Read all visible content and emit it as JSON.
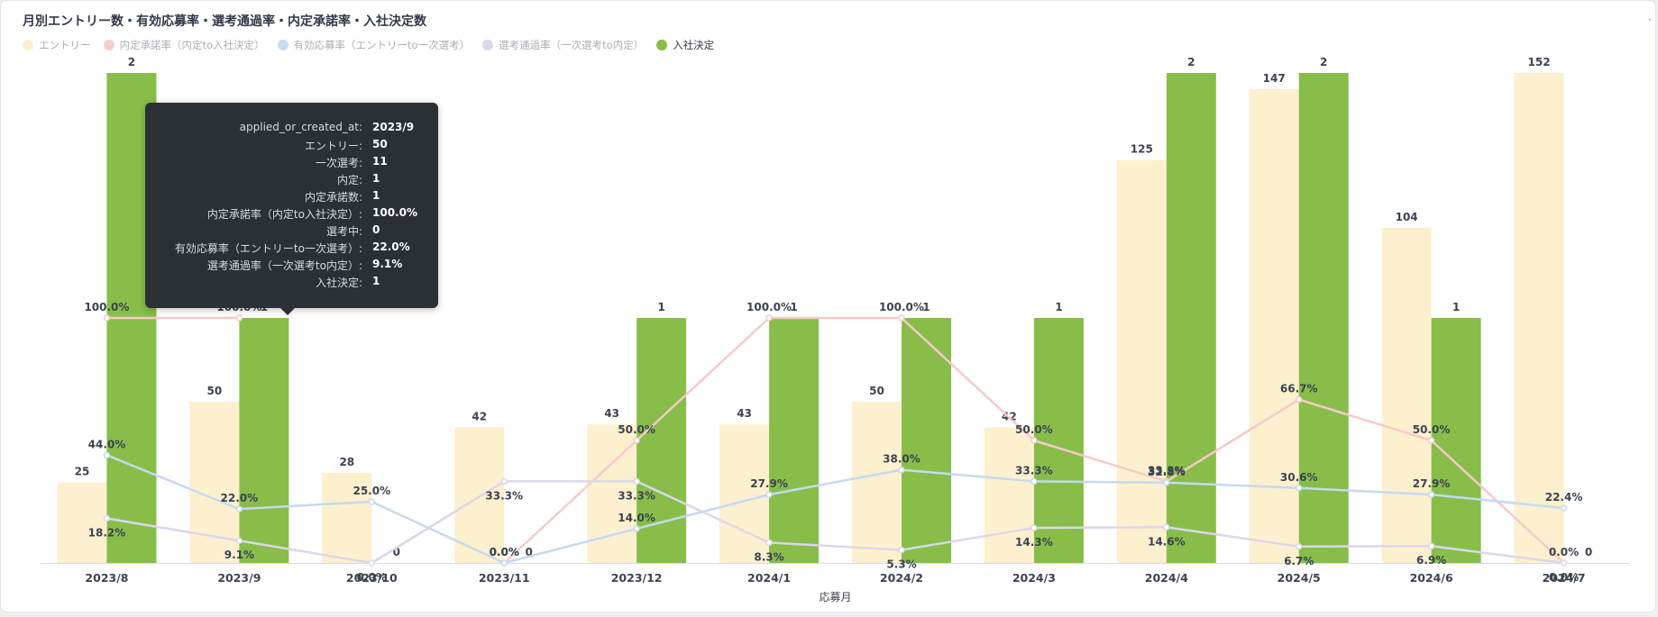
{
  "title": "月別エントリー数・有効応募率・選考通過率・内定承諾率・入社決定数",
  "corner_mark": "·",
  "legend": [
    {
      "label": "エントリー",
      "color": "#fdf0cf",
      "active": false
    },
    {
      "label": "内定承諾率（内定to入社決定）",
      "color": "#f9cfcf",
      "active": false
    },
    {
      "label": "有効応募率（エントリーto一次選考）",
      "color": "#c7dcf1",
      "active": false
    },
    {
      "label": "選考通過率（一次選考to内定）",
      "color": "#dcd7ea",
      "active": false
    },
    {
      "label": "入社決定",
      "color": "#88bd4a",
      "active": true
    }
  ],
  "tooltip": {
    "rows": [
      {
        "key": "applied_or_created_at:",
        "value": "2023/9"
      },
      {
        "key": "エントリー:",
        "value": "50"
      },
      {
        "key": "一次選考:",
        "value": "11"
      },
      {
        "key": "内定:",
        "value": "1"
      },
      {
        "key": "内定承諾数:",
        "value": "1"
      },
      {
        "key": "内定承諾率（内定to入社決定）:",
        "value": "100.0%"
      },
      {
        "key": "選考中:",
        "value": "0"
      },
      {
        "key": "有効応募率（エントリーto一次選考）:",
        "value": "22.0%"
      },
      {
        "key": "選考通過率（一次選考to内定）:",
        "value": "9.1%"
      },
      {
        "key": "入社決定:",
        "value": "1"
      }
    ]
  },
  "chart_data": {
    "type": "bar",
    "xlabel": "応募月",
    "categories": [
      "2023/8",
      "2023/9",
      "2023/10",
      "2023/11",
      "2023/12",
      "2024/1",
      "2024/2",
      "2024/3",
      "2024/4",
      "2024/5",
      "2024/6",
      "2024/7"
    ],
    "entry": {
      "name": "エントリー",
      "color": "#fdf0cf",
      "values": [
        25,
        50,
        28,
        42,
        43,
        43,
        50,
        42,
        125,
        147,
        104,
        152
      ],
      "ylim": [
        0,
        152
      ]
    },
    "hires": {
      "name": "入社決定",
      "color": "#88bd4a",
      "values": [
        2,
        1,
        0,
        0,
        1,
        1,
        1,
        1,
        2,
        2,
        1,
        0
      ],
      "ylim": [
        0,
        2
      ]
    },
    "lines": [
      {
        "name": "内定承諾率（内定to入社決定）",
        "color": "#f7c9c9",
        "values": [
          100.0,
          100.0,
          null,
          0.0,
          50.0,
          100.0,
          100.0,
          50.0,
          33.3,
          66.7,
          50.0,
          0.0
        ],
        "labels": [
          "100.0%",
          "100.0%",
          "",
          "0.0%",
          "50.0%",
          "100.0%",
          "100.0%",
          "50.0%",
          "33.3%",
          "66.7%",
          "50.0%",
          "0.0%"
        ]
      },
      {
        "name": "有効応募率（エントリーto一次選考）",
        "color": "#c4daf0",
        "values": [
          44.0,
          22.0,
          25.0,
          0.0,
          14.0,
          27.9,
          38.0,
          33.3,
          32.8,
          30.6,
          27.9,
          22.4
        ],
        "labels": [
          "44.0%",
          "22.0%",
          "25.0%",
          "0.0%",
          "14.0%",
          "27.9%",
          "38.0%",
          "33.3%",
          "32.8%",
          "30.6%",
          "27.9%",
          "22.4%"
        ]
      },
      {
        "name": "選考通過率（一次選考to内定）",
        "color": "#dcd6ea",
        "values": [
          18.2,
          9.1,
          0.0,
          33.3,
          33.3,
          8.3,
          5.3,
          14.3,
          14.6,
          6.7,
          6.9,
          0.0
        ],
        "labels": [
          "18.2%",
          "9.1%",
          "0.0%",
          "33.3%",
          "33.3%",
          "8.3%",
          "5.3%",
          "14.3%",
          "14.6%",
          "6.7%",
          "6.9%",
          "0.0%"
        ]
      }
    ]
  }
}
